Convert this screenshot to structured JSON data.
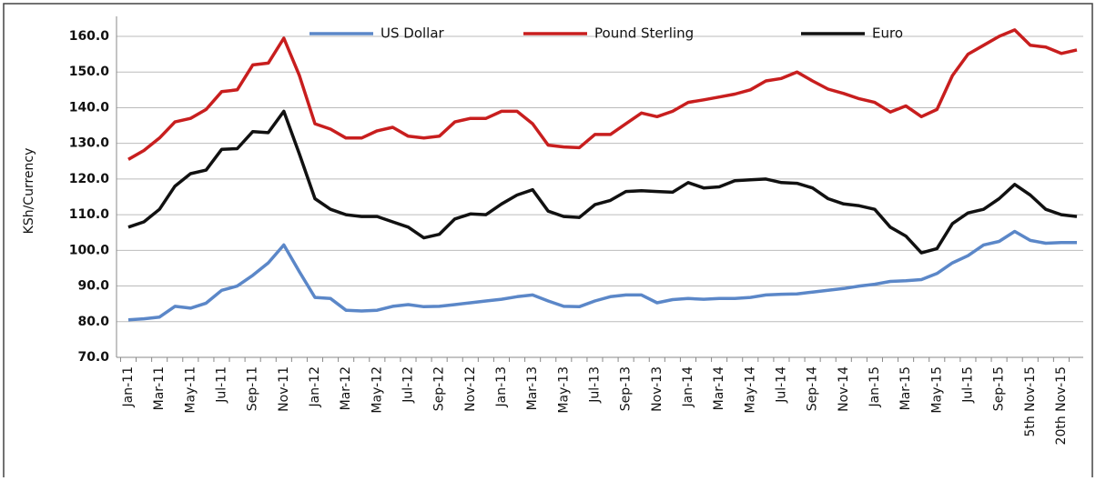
{
  "chart_data": {
    "type": "line",
    "y_label": "KSh/Currency",
    "categories": [
      "Jan-11",
      null,
      "Mar-11",
      null,
      "May-11",
      null,
      "Jul-11",
      null,
      "Sep-11",
      null,
      "Nov-11",
      null,
      "Jan-12",
      null,
      "Mar-12",
      null,
      "May-12",
      null,
      "Jul-12",
      null,
      "Sep-12",
      null,
      "Nov-12",
      null,
      "Jan-13",
      null,
      "Mar-13",
      null,
      "May-13",
      null,
      "Jul-13",
      null,
      "Sep-13",
      null,
      "Nov-13",
      null,
      "Jan-14",
      null,
      "Mar-14",
      null,
      "May-14",
      null,
      "Jul-14",
      null,
      "Sep-14",
      null,
      "Nov-14",
      null,
      "Jan-15",
      null,
      "Mar-15",
      null,
      "May-15",
      null,
      "Jul-15",
      null,
      "Sep-15",
      null,
      "5th Nov-15",
      null,
      "20th Nov-15",
      null
    ],
    "series": [
      {
        "name": "US Dollar",
        "color": "#5b87c8",
        "values": [
          80.5,
          80.8,
          81.3,
          84.3,
          83.8,
          85.2,
          88.8,
          90,
          93,
          96.5,
          101.5,
          94,
          86.8,
          86.5,
          83.2,
          83,
          83.2,
          84.3,
          84.8,
          84.2,
          84.3,
          84.8,
          85.3,
          85.8,
          86.3,
          87,
          87.5,
          85.8,
          84.3,
          84.2,
          85.8,
          87,
          87.5,
          87.5,
          85.3,
          86.2,
          86.5,
          86.3,
          86.5,
          86.5,
          86.8,
          87.5,
          87.7,
          87.8,
          88.3,
          88.8,
          89.3,
          90,
          90.5,
          91.3,
          91.5,
          91.8,
          93.5,
          96.5,
          98.5,
          101.5,
          102.5,
          105.3,
          102.8,
          102,
          102.2,
          102.2
        ]
      },
      {
        "name": "Pound Sterling",
        "color": "#c81e1e",
        "values": [
          125.5,
          128,
          131.5,
          136,
          137,
          139.5,
          144.5,
          145,
          152,
          152.5,
          159.5,
          149,
          135.5,
          134,
          131.5,
          131.5,
          133.5,
          134.5,
          132,
          131.5,
          132,
          136,
          137,
          137,
          139,
          139,
          135.5,
          129.5,
          129,
          128.8,
          132.5,
          132.5,
          135.5,
          138.5,
          137.5,
          139,
          141.5,
          142.2,
          143,
          143.8,
          145,
          147.5,
          148.2,
          150,
          147.5,
          145.2,
          144,
          142.5,
          141.5,
          138.8,
          140.5,
          137.5,
          139.5,
          149,
          155,
          157.5,
          160,
          161.8,
          157.5,
          157,
          155.2,
          156.2
        ]
      },
      {
        "name": "Euro",
        "color": "#111111",
        "values": [
          106.5,
          108,
          111.5,
          118,
          121.5,
          122.5,
          128.3,
          128.5,
          133.3,
          133,
          139,
          127,
          114.5,
          111.5,
          110,
          109.5,
          109.5,
          108,
          106.5,
          103.5,
          104.5,
          108.8,
          110.2,
          110,
          113,
          115.5,
          117,
          111,
          109.5,
          109.2,
          112.8,
          114,
          116.5,
          116.7,
          116.5,
          116.3,
          119,
          117.5,
          117.8,
          119.5,
          119.8,
          120,
          119,
          118.8,
          117.5,
          114.5,
          113,
          112.5,
          111.5,
          106.5,
          104,
          99.3,
          100.5,
          107.5,
          110.5,
          111.5,
          114.5,
          118.5,
          115.5,
          111.5,
          110,
          109.5
        ]
      }
    ],
    "ylim": [
      70,
      160
    ],
    "yticks": [
      {
        "value": 70,
        "label": "70.0"
      },
      {
        "value": 80,
        "label": "80.0"
      },
      {
        "value": 90,
        "label": "90.0"
      },
      {
        "value": 100,
        "label": "100.0"
      },
      {
        "value": 110,
        "label": "110.0"
      },
      {
        "value": 120,
        "label": "120.0"
      },
      {
        "value": 130,
        "label": "130.0"
      },
      {
        "value": 140,
        "label": "140.0"
      },
      {
        "value": 150,
        "label": "150.0"
      },
      {
        "value": 160,
        "label": "160.0"
      }
    ],
    "grid": true,
    "legend": "top"
  }
}
